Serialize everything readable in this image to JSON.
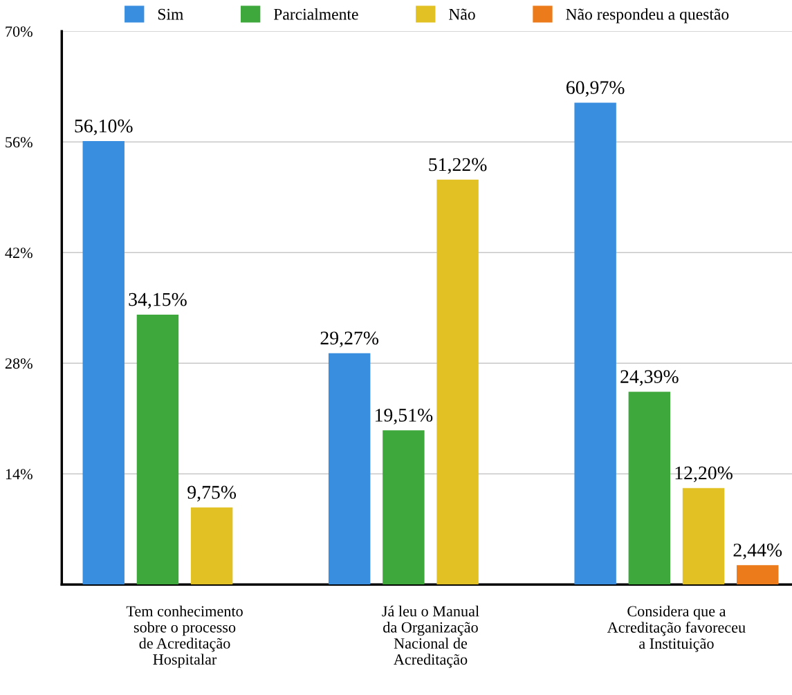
{
  "chart_data": {
    "type": "bar",
    "categories": [
      "Tem conhecimento\nsobre o processo\nde Acreditação\nHospitalar",
      "Já leu o Manual\nda Organização\nNacional de\nAcreditação",
      "Considera que a\nAcreditação favoreceu\na Instituição"
    ],
    "series": [
      {
        "name": "Sim",
        "color": "#3a8ee0",
        "values": [
          56.1,
          29.27,
          60.97
        ],
        "value_labels": [
          "56,10%",
          "29,27%",
          "60,97%"
        ]
      },
      {
        "name": "Parcialmente",
        "color": "#3fa83c",
        "values": [
          34.15,
          19.51,
          24.39
        ],
        "value_labels": [
          "34,15%",
          "19,51%",
          "24,39%"
        ]
      },
      {
        "name": "Não",
        "color": "#e2c125",
        "values": [
          9.75,
          51.22,
          12.2
        ],
        "value_labels": [
          "9,75%",
          "51,22%",
          "12,20%"
        ]
      },
      {
        "name": "Não respondeu a questão",
        "color": "#ec7b1c",
        "values": [
          null,
          null,
          2.44
        ],
        "value_labels": [
          null,
          null,
          "2,44%"
        ]
      }
    ],
    "ylim": [
      0,
      70
    ],
    "yticks": [
      {
        "value": 14,
        "label": "14%"
      },
      {
        "value": 28,
        "label": "28%"
      },
      {
        "value": 42,
        "label": "42%"
      },
      {
        "value": 56,
        "label": "56%"
      },
      {
        "value": 70,
        "label": "70%"
      }
    ],
    "grid": "y",
    "legend": "top"
  }
}
